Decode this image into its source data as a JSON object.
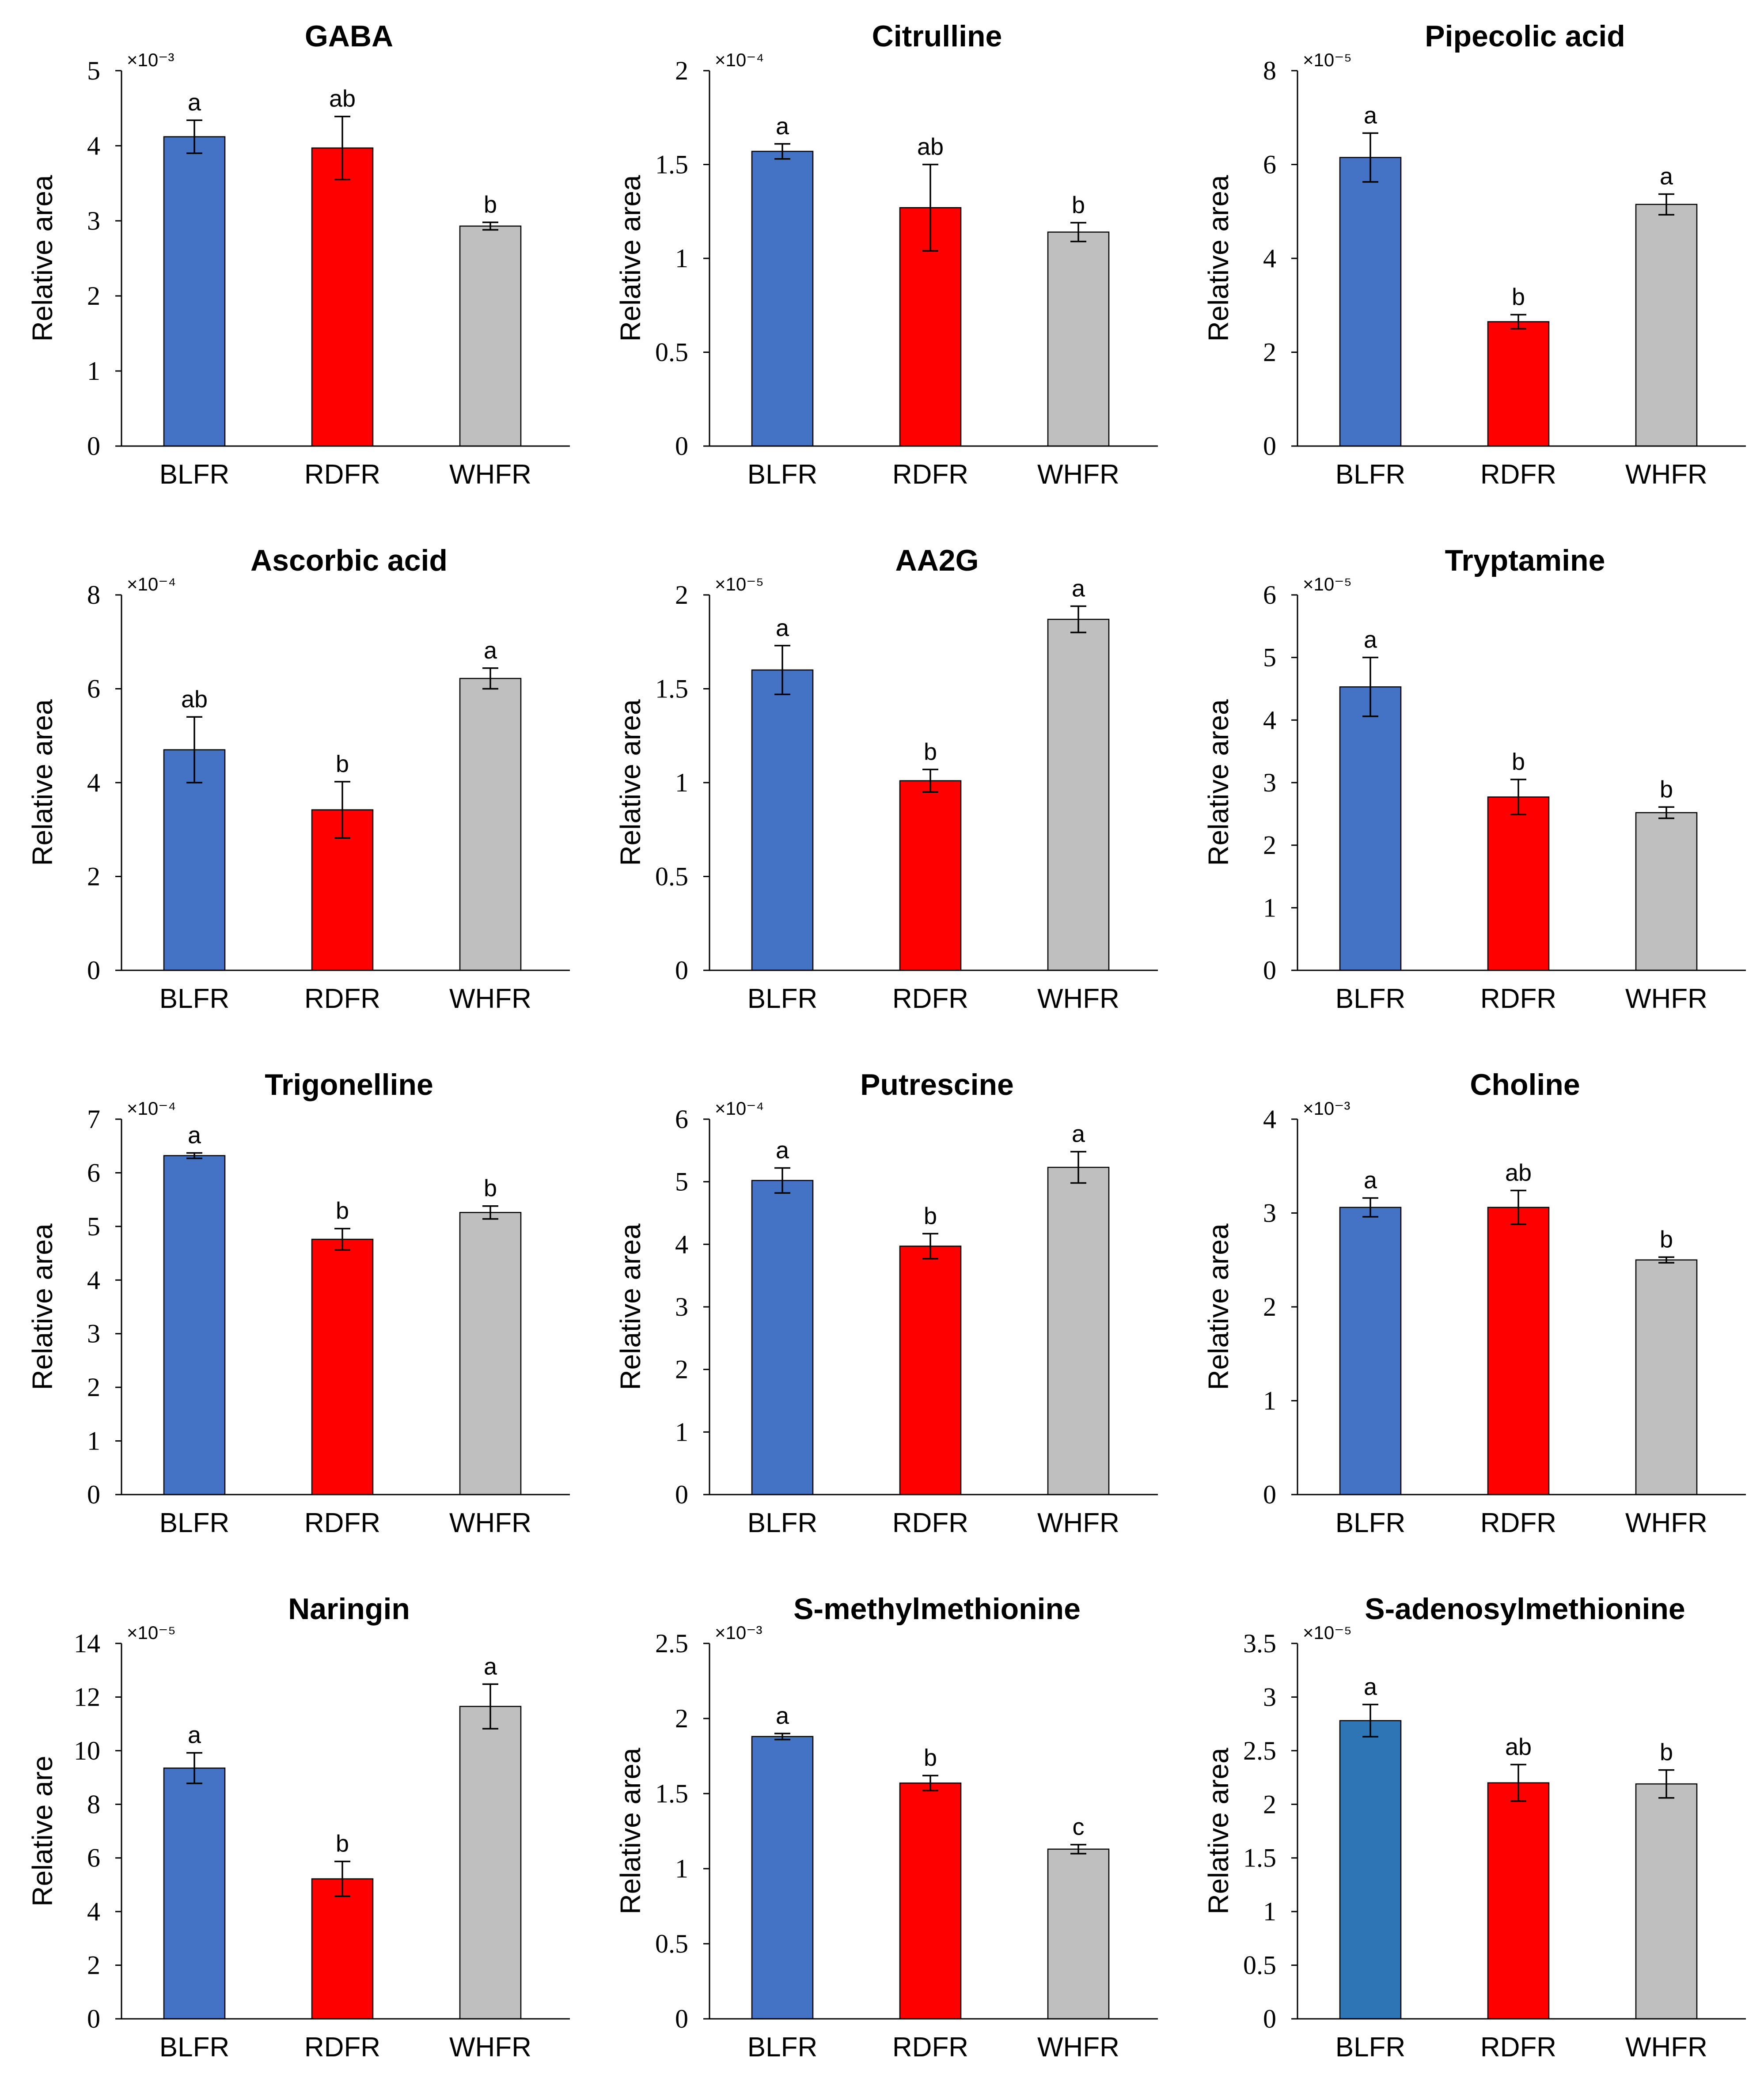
{
  "chart_data": [
    {
      "type": "bar",
      "title": "GABA",
      "ylabel": "Relative area",
      "multiplier": "×10⁻³",
      "categories": [
        "BLFR",
        "RDFR",
        "WHFR"
      ],
      "values": [
        4.12,
        3.97,
        2.93
      ],
      "errors": [
        0.22,
        0.42,
        0.05
      ],
      "letters": [
        "a",
        "ab",
        "b"
      ],
      "colors": [
        "#4472c4",
        "#ff0000",
        "#bfbfbf"
      ],
      "ylim": [
        0,
        5
      ],
      "yticks": [
        0,
        1,
        2,
        3,
        4,
        5
      ],
      "ytick_labels": [
        "0",
        "1",
        "2",
        "3",
        "4",
        "5"
      ]
    },
    {
      "type": "bar",
      "title": "Citrulline",
      "ylabel": "Relative area",
      "multiplier": "×10⁻⁴",
      "categories": [
        "BLFR",
        "RDFR",
        "WHFR"
      ],
      "values": [
        1.57,
        1.27,
        1.14
      ],
      "errors": [
        0.04,
        0.23,
        0.05
      ],
      "letters": [
        "a",
        "ab",
        "b"
      ],
      "colors": [
        "#4472c4",
        "#ff0000",
        "#bfbfbf"
      ],
      "ylim": [
        0,
        2
      ],
      "yticks": [
        0,
        0.5,
        1,
        1.5,
        2
      ],
      "ytick_labels": [
        "0",
        "0.5",
        "1",
        "1.5",
        "2"
      ]
    },
    {
      "type": "bar",
      "title": "Pipecolic acid",
      "ylabel": "Relative area",
      "multiplier": "×10⁻⁵",
      "categories": [
        "BLFR",
        "RDFR",
        "WHFR"
      ],
      "values": [
        6.15,
        2.65,
        5.15
      ],
      "errors": [
        0.52,
        0.15,
        0.22
      ],
      "letters": [
        "a",
        "b",
        "a"
      ],
      "colors": [
        "#4472c4",
        "#ff0000",
        "#bfbfbf"
      ],
      "ylim": [
        0,
        8
      ],
      "yticks": [
        0,
        2,
        4,
        6,
        8
      ],
      "ytick_labels": [
        "0",
        "2",
        "4",
        "6",
        "8"
      ]
    },
    {
      "type": "bar",
      "title": "Ascorbic acid",
      "ylabel": "Relative area",
      "multiplier": "×10⁻⁴",
      "categories": [
        "BLFR",
        "RDFR",
        "WHFR"
      ],
      "values": [
        4.7,
        3.42,
        6.22
      ],
      "errors": [
        0.7,
        0.6,
        0.22
      ],
      "letters": [
        "ab",
        "b",
        "a"
      ],
      "colors": [
        "#4472c4",
        "#ff0000",
        "#bfbfbf"
      ],
      "ylim": [
        0,
        8
      ],
      "yticks": [
        0,
        2,
        4,
        6,
        8
      ],
      "ytick_labels": [
        "0",
        "2",
        "4",
        "6",
        "8"
      ]
    },
    {
      "type": "bar",
      "title": "AA2G",
      "ylabel": "Relative area",
      "multiplier": "×10⁻⁵",
      "categories": [
        "BLFR",
        "RDFR",
        "WHFR"
      ],
      "values": [
        1.6,
        1.01,
        1.87
      ],
      "errors": [
        0.13,
        0.06,
        0.07
      ],
      "letters": [
        "a",
        "b",
        "a"
      ],
      "colors": [
        "#4472c4",
        "#ff0000",
        "#bfbfbf"
      ],
      "ylim": [
        0,
        2
      ],
      "yticks": [
        0,
        0.5,
        1,
        1.5,
        2
      ],
      "ytick_labels": [
        "0",
        "0.5",
        "1",
        "1.5",
        "2"
      ]
    },
    {
      "type": "bar",
      "title": "Tryptamine",
      "ylabel": "Relative area",
      "multiplier": "×10⁻⁵",
      "categories": [
        "BLFR",
        "RDFR",
        "WHFR"
      ],
      "values": [
        4.53,
        2.77,
        2.52
      ],
      "errors": [
        0.47,
        0.28,
        0.09
      ],
      "letters": [
        "a",
        "b",
        "b"
      ],
      "colors": [
        "#4472c4",
        "#ff0000",
        "#bfbfbf"
      ],
      "ylim": [
        0,
        6
      ],
      "yticks": [
        0,
        1,
        2,
        3,
        4,
        5,
        6
      ],
      "ytick_labels": [
        "0",
        "1",
        "2",
        "3",
        "4",
        "5",
        "6"
      ]
    },
    {
      "type": "bar",
      "title": "Trigonelline",
      "ylabel": "Relative area",
      "multiplier": "×10⁻⁴",
      "categories": [
        "BLFR",
        "RDFR",
        "WHFR"
      ],
      "values": [
        6.32,
        4.76,
        5.26
      ],
      "errors": [
        0.05,
        0.2,
        0.12
      ],
      "letters": [
        "a",
        "b",
        "b"
      ],
      "colors": [
        "#4472c4",
        "#ff0000",
        "#bfbfbf"
      ],
      "ylim": [
        0,
        7
      ],
      "yticks": [
        0,
        1,
        2,
        3,
        4,
        5,
        6,
        7
      ],
      "ytick_labels": [
        "0",
        "1",
        "2",
        "3",
        "4",
        "5",
        "6",
        "7"
      ]
    },
    {
      "type": "bar",
      "title": "Putrescine",
      "ylabel": "Relative area",
      "multiplier": "×10⁻⁴",
      "categories": [
        "BLFR",
        "RDFR",
        "WHFR"
      ],
      "values": [
        5.02,
        3.97,
        5.23
      ],
      "errors": [
        0.2,
        0.2,
        0.25
      ],
      "letters": [
        "a",
        "b",
        "a"
      ],
      "colors": [
        "#4472c4",
        "#ff0000",
        "#bfbfbf"
      ],
      "ylim": [
        0,
        6
      ],
      "yticks": [
        0,
        1,
        2,
        3,
        4,
        5,
        6
      ],
      "ytick_labels": [
        "0",
        "1",
        "2",
        "3",
        "4",
        "5",
        "6"
      ]
    },
    {
      "type": "bar",
      "title": "Choline",
      "ylabel": "Relative area",
      "multiplier": "×10⁻³",
      "categories": [
        "BLFR",
        "RDFR",
        "WHFR"
      ],
      "values": [
        3.06,
        3.06,
        2.5
      ],
      "errors": [
        0.1,
        0.18,
        0.03
      ],
      "letters": [
        "a",
        "ab",
        "b"
      ],
      "colors": [
        "#4472c4",
        "#ff0000",
        "#bfbfbf"
      ],
      "ylim": [
        0,
        4
      ],
      "yticks": [
        0,
        1,
        2,
        3,
        4
      ],
      "ytick_labels": [
        "0",
        "1",
        "2",
        "3",
        "4"
      ]
    },
    {
      "type": "bar",
      "title": "Naringin",
      "ylabel": "Relative are",
      "multiplier": "×10⁻⁵",
      "categories": [
        "BLFR",
        "RDFR",
        "WHFR"
      ],
      "values": [
        9.35,
        5.22,
        11.65
      ],
      "errors": [
        0.57,
        0.65,
        0.83
      ],
      "letters": [
        "a",
        "b",
        "a"
      ],
      "colors": [
        "#4472c4",
        "#ff0000",
        "#bfbfbf"
      ],
      "ylim": [
        0,
        14
      ],
      "yticks": [
        0,
        2,
        4,
        6,
        8,
        10,
        12,
        14
      ],
      "ytick_labels": [
        "0",
        "2",
        "4",
        "6",
        "8",
        "10",
        "12",
        "14"
      ]
    },
    {
      "type": "bar",
      "title": "S-methylmethionine",
      "ylabel": "Relative area",
      "multiplier": "×10⁻³",
      "categories": [
        "BLFR",
        "RDFR",
        "WHFR"
      ],
      "values": [
        1.88,
        1.57,
        1.13
      ],
      "errors": [
        0.02,
        0.05,
        0.03
      ],
      "letters": [
        "a",
        "b",
        "c"
      ],
      "colors": [
        "#4472c4",
        "#ff0000",
        "#bfbfbf"
      ],
      "ylim": [
        0,
        2.5
      ],
      "yticks": [
        0,
        0.5,
        1,
        1.5,
        2,
        2.5
      ],
      "ytick_labels": [
        "0",
        "0.5",
        "1",
        "1.5",
        "2",
        "2.5"
      ]
    },
    {
      "type": "bar",
      "title": "S-adenosylmethionine",
      "ylabel": "Relative area",
      "multiplier": "×10⁻⁵",
      "categories": [
        "BLFR",
        "RDFR",
        "WHFR"
      ],
      "values": [
        2.78,
        2.2,
        2.19
      ],
      "errors": [
        0.15,
        0.17,
        0.13
      ],
      "letters": [
        "a",
        "ab",
        "b"
      ],
      "colors": [
        "#2e75b6",
        "#ff0000",
        "#bfbfbf"
      ],
      "ylim": [
        0,
        3.5
      ],
      "yticks": [
        0,
        0.5,
        1,
        1.5,
        2,
        2.5,
        3,
        3.5
      ],
      "ytick_labels": [
        "0",
        "0.5",
        "1",
        "1.5",
        "2",
        "2.5",
        "3",
        "3.5"
      ]
    }
  ]
}
